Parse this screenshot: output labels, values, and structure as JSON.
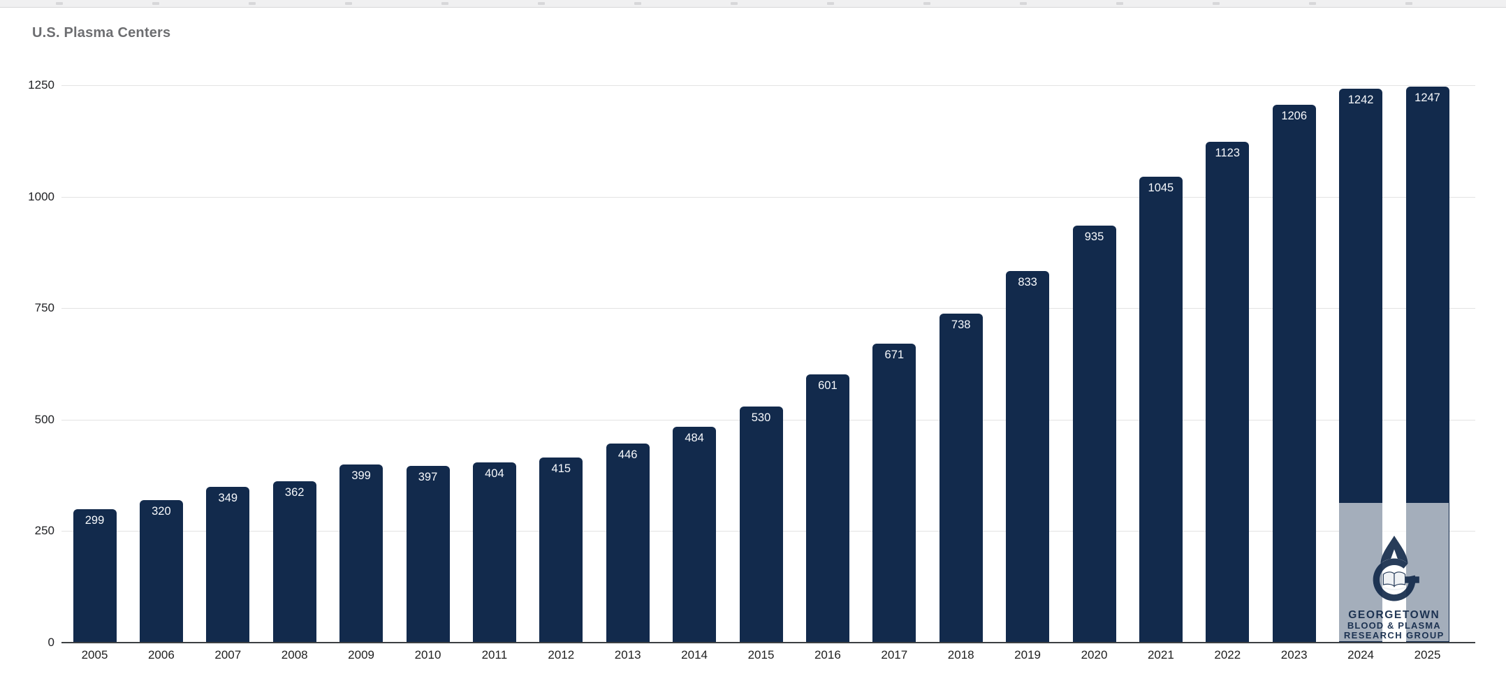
{
  "chart_data": {
    "type": "bar",
    "title": "U.S. Plasma Centers",
    "categories": [
      "2005",
      "2006",
      "2007",
      "2008",
      "2009",
      "2010",
      "2011",
      "2012",
      "2013",
      "2014",
      "2015",
      "2016",
      "2017",
      "2018",
      "2019",
      "2020",
      "2021",
      "2022",
      "2023",
      "2024",
      "2025"
    ],
    "values": [
      299,
      320,
      349,
      362,
      399,
      397,
      404,
      415,
      446,
      484,
      530,
      601,
      671,
      738,
      833,
      935,
      1045,
      1123,
      1206,
      1242,
      1247
    ],
    "xlabel": "",
    "ylabel": "",
    "ylim": [
      0,
      1250
    ],
    "yticks": [
      0,
      250,
      500,
      750,
      1000,
      1250
    ],
    "grid": "horizontal",
    "legend": "none",
    "value_labels": "inside-top",
    "bar_color": "#122a4c",
    "value_label_color": "#f7f9fc"
  },
  "watermark": {
    "icon": "droplet-g-book-logo",
    "line1": "GEORGETOWN",
    "line2": "BLOOD & PLASMA",
    "line3": "RESEARCH GROUP"
  },
  "colors": {
    "bar_navy": "#122a4c",
    "title_gray": "#6d6e71",
    "gridline": "#e3e3e3",
    "axis_line": "#3c4043",
    "tick_label": "#202124",
    "watermark_navy": "#102748",
    "watermark_bg": "rgba(255,255,255,0.62)"
  }
}
